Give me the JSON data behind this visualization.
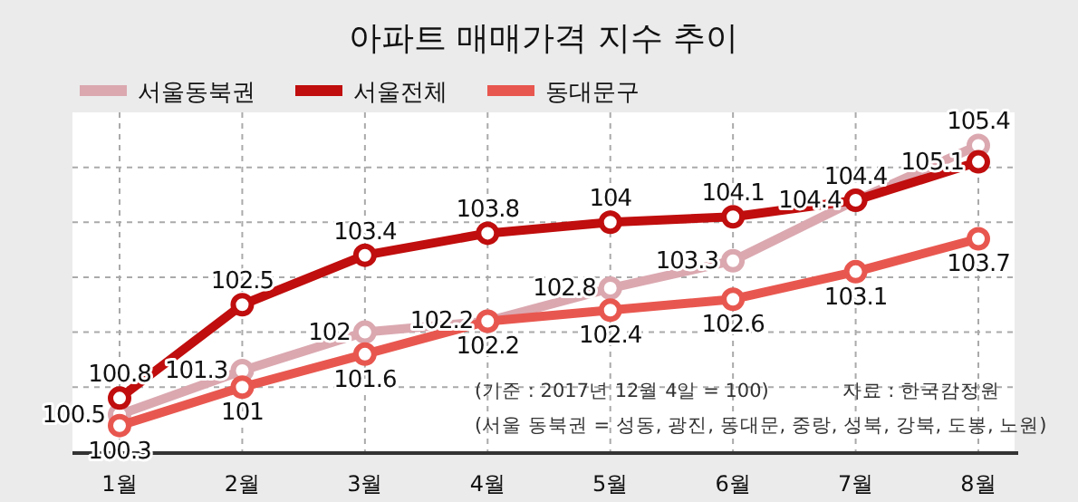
{
  "chart_data": {
    "type": "line",
    "title": "아파트 매매가격 지수 추이",
    "categories": [
      "1월",
      "2월",
      "3월",
      "4월",
      "5월",
      "6월",
      "7월",
      "8월"
    ],
    "series": [
      {
        "name": "서울동북권",
        "color": "#dba8b0",
        "values": [
          100.5,
          101.3,
          102,
          102.2,
          102.8,
          103.3,
          104.4,
          105.4
        ]
      },
      {
        "name": "서울전체",
        "color": "#c00d0d",
        "values": [
          100.8,
          102.5,
          103.4,
          103.8,
          104,
          104.1,
          104.4,
          105.1
        ]
      },
      {
        "name": "동대문구",
        "color": "#e8574f",
        "values": [
          100.3,
          101,
          101.6,
          102.2,
          102.4,
          102.6,
          103.1,
          103.7
        ]
      }
    ],
    "ylim": [
      99.8,
      106
    ],
    "yticks": [
      {
        "value": 101,
        "label": null
      },
      {
        "value": 102,
        "label": null
      },
      {
        "value": 103,
        "label": null
      },
      {
        "value": 104,
        "label": null
      },
      {
        "value": 105,
        "label": null
      }
    ],
    "grid": true,
    "legend": "top left",
    "marker": "circle",
    "data_labels": true,
    "tick_labels": "x",
    "annotations": [
      "(기준 : 2017년 12월 4일 = 100)",
      "(서울 동북권 = 성동, 광진, 동대문, 중랑, 성북, 강북, 도봉, 노원)",
      "자료 : 한국감정원"
    ]
  }
}
